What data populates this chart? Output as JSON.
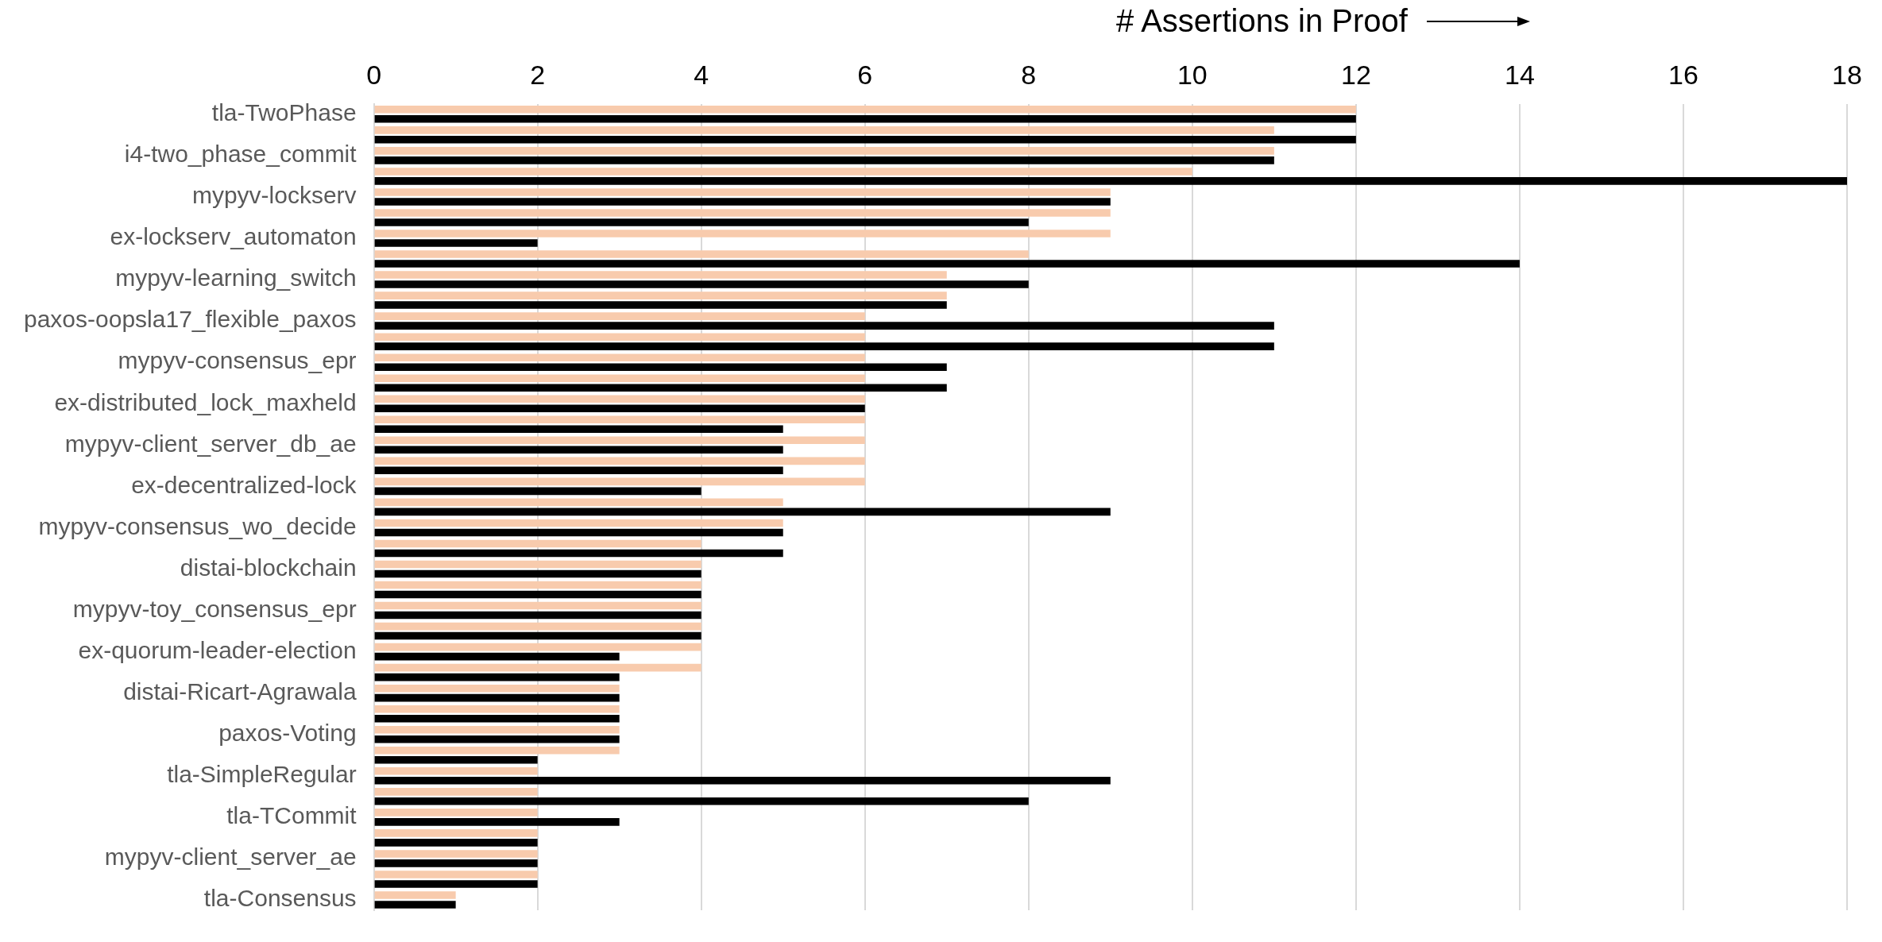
{
  "chart_data": {
    "type": "bar",
    "orientation": "horizontal",
    "xlabel": "# Assertions in Proof",
    "categories": [
      "tla-TwoPhase",
      null,
      "i4-two_phase_commit",
      null,
      "mypyv-lockserv",
      null,
      "ex-lockserv_automaton",
      null,
      "mypyv-learning_switch",
      null,
      "paxos-oopsla17_flexible_paxos",
      null,
      "mypyv-consensus_epr",
      null,
      "ex-distributed_lock_maxheld",
      null,
      "mypyv-client_server_db_ae",
      null,
      "ex-decentralized-lock",
      null,
      "mypyv-consensus_wo_decide",
      null,
      "distai-blockchain",
      null,
      "mypyv-toy_consensus_epr",
      null,
      "ex-quorum-leader-election",
      null,
      "distai-Ricart-Agrawala",
      null,
      "paxos-Voting",
      null,
      "tla-SimpleRegular",
      null,
      "tla-TCommit",
      null,
      "mypyv-client_server_ae",
      null,
      "tla-Consensus"
    ],
    "series": [
      {
        "color": "#f8cbad",
        "values": [
          12,
          11,
          11,
          10,
          9,
          9,
          9,
          8,
          7,
          7,
          6,
          6,
          6,
          6,
          6,
          6,
          6,
          6,
          6,
          5,
          5,
          4,
          4,
          4,
          4,
          4,
          4,
          4,
          3,
          3,
          3,
          3,
          2,
          2,
          2,
          2,
          2,
          2,
          1
        ]
      },
      {
        "color": "#000000",
        "values": [
          12,
          12,
          11,
          18,
          9,
          8,
          2,
          14,
          8,
          7,
          11,
          11,
          7,
          7,
          6,
          5,
          5,
          5,
          4,
          9,
          5,
          5,
          4,
          4,
          4,
          4,
          3,
          3,
          3,
          3,
          3,
          2,
          9,
          8,
          3,
          2,
          2,
          2,
          1
        ]
      }
    ],
    "xlim": [
      0,
      18
    ],
    "xticks": [
      0,
      2,
      4,
      6,
      8,
      10,
      12,
      14,
      16,
      18
    ],
    "grid": "x",
    "legend": false
  }
}
